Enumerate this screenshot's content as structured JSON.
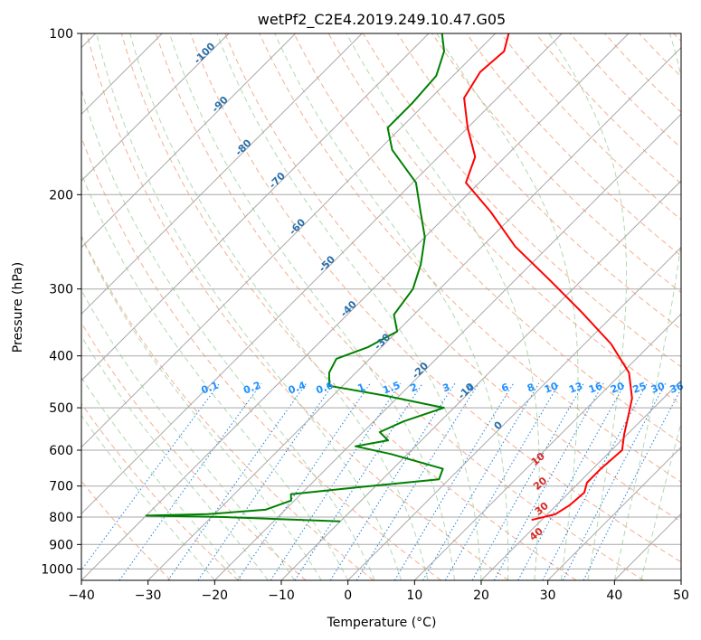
{
  "chart_data": {
    "type": "line",
    "title": "wetPf2_C2E4.2019.249.10.47.G05",
    "xlabel": "Temperature (°C)",
    "ylabel": "Pressure (hPa)",
    "xlim": [
      -40,
      50
    ],
    "ylim": [
      1050,
      100
    ],
    "y_scale": "log",
    "grid": true,
    "x_ticks": [
      -40,
      -30,
      -20,
      -10,
      0,
      10,
      20,
      30,
      40,
      50
    ],
    "y_ticks": [
      100,
      200,
      300,
      400,
      500,
      600,
      700,
      800,
      900,
      1000
    ],
    "series": [
      {
        "color": "#ff0000",
        "points": [
          {
            "p": 810,
            "t": 18.5
          },
          {
            "p": 790,
            "t": 21.2
          },
          {
            "p": 760,
            "t": 22.0
          },
          {
            "p": 720,
            "t": 22.3
          },
          {
            "p": 690,
            "t": 21.2
          },
          {
            "p": 650,
            "t": 21.2
          },
          {
            "p": 600,
            "t": 21.6
          },
          {
            "p": 560,
            "t": 19.5
          },
          {
            "p": 520,
            "t": 17.5
          },
          {
            "p": 480,
            "t": 15.3
          },
          {
            "p": 430,
            "t": 11.0
          },
          {
            "p": 380,
            "t": 4.0
          },
          {
            "p": 330,
            "t": -5.5
          },
          {
            "p": 290,
            "t": -14.5
          },
          {
            "p": 250,
            "t": -25.0
          },
          {
            "p": 215,
            "t": -34.0
          },
          {
            "p": 190,
            "t": -42.0
          },
          {
            "p": 170,
            "t": -44.5
          },
          {
            "p": 150,
            "t": -50.0
          },
          {
            "p": 132,
            "t": -55.0
          },
          {
            "p": 118,
            "t": -56.5
          },
          {
            "p": 108,
            "t": -56.0
          },
          {
            "p": 100,
            "t": -58.0
          }
        ]
      },
      {
        "color": "#008000",
        "points": [
          {
            "p": 815,
            "t": -10.0
          },
          {
            "p": 800,
            "t": -28.0
          },
          {
            "p": 795,
            "t": -40.0
          },
          {
            "p": 790,
            "t": -31.0
          },
          {
            "p": 775,
            "t": -23.0
          },
          {
            "p": 745,
            "t": -20.5
          },
          {
            "p": 725,
            "t": -21.5
          },
          {
            "p": 705,
            "t": -13.0
          },
          {
            "p": 680,
            "t": -1.5
          },
          {
            "p": 650,
            "t": -2.5
          },
          {
            "p": 610,
            "t": -12.5
          },
          {
            "p": 590,
            "t": -19.0
          },
          {
            "p": 575,
            "t": -15.0
          },
          {
            "p": 555,
            "t": -17.5
          },
          {
            "p": 530,
            "t": -15.5
          },
          {
            "p": 500,
            "t": -11.5
          },
          {
            "p": 475,
            "t": -22.0
          },
          {
            "p": 455,
            "t": -32.0
          },
          {
            "p": 430,
            "t": -34.0
          },
          {
            "p": 405,
            "t": -35.0
          },
          {
            "p": 385,
            "t": -32.0
          },
          {
            "p": 360,
            "t": -30.0
          },
          {
            "p": 335,
            "t": -33.0
          },
          {
            "p": 300,
            "t": -34.0
          },
          {
            "p": 270,
            "t": -36.5
          },
          {
            "p": 240,
            "t": -40.0
          },
          {
            "p": 215,
            "t": -44.5
          },
          {
            "p": 190,
            "t": -49.5
          },
          {
            "p": 165,
            "t": -58.0
          },
          {
            "p": 150,
            "t": -62.0
          },
          {
            "p": 135,
            "t": -62.0
          },
          {
            "p": 120,
            "t": -62.5
          },
          {
            "p": 108,
            "t": -65.0
          },
          {
            "p": 100,
            "t": -68.0
          }
        ]
      }
    ],
    "dry_adiabat_labels": [
      "-100",
      "-90",
      "-80",
      "-70",
      "-60",
      "-50",
      "-40",
      "-30",
      "-20",
      "-10",
      "0"
    ],
    "moist_adiabat_labels": [
      "10",
      "20",
      "30",
      "40"
    ],
    "mixing_ratio_labels": [
      "0.1",
      "0.2",
      "0.4",
      "0.6",
      "1",
      "1.5",
      "2",
      "3",
      "4",
      "6",
      "8",
      "10",
      "13",
      "16",
      "20",
      "25",
      "30",
      "36"
    ]
  }
}
